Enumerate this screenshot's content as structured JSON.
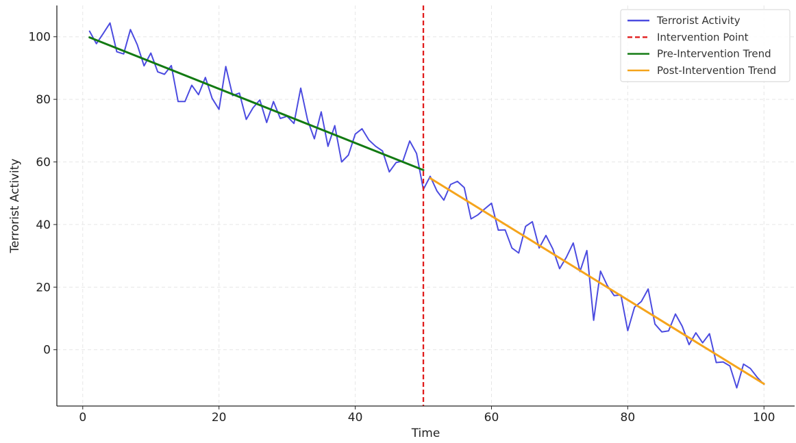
{
  "chart_data": {
    "type": "line",
    "title": "",
    "xlabel": "Time",
    "ylabel": "Terrorist Activity",
    "xlim": [
      -3.8,
      104.5
    ],
    "ylim": [
      -18,
      110
    ],
    "xticks": [
      0,
      20,
      40,
      60,
      80,
      100
    ],
    "yticks": [
      0,
      20,
      40,
      60,
      80,
      100
    ],
    "grid": true,
    "legend_position": "top-right",
    "intervention_x": 50,
    "series": [
      {
        "name": "Terrorist Activity",
        "kind": "line",
        "color": "#4b4be0",
        "x": [
          1,
          2,
          3,
          4,
          5,
          6,
          7,
          8,
          9,
          10,
          11,
          12,
          13,
          14,
          15,
          16,
          17,
          18,
          19,
          20,
          21,
          22,
          23,
          24,
          25,
          26,
          27,
          28,
          29,
          30,
          31,
          32,
          33,
          34,
          35,
          36,
          37,
          38,
          39,
          40,
          41,
          42,
          43,
          44,
          45,
          46,
          47,
          48,
          49,
          50,
          51,
          52,
          53,
          54,
          55,
          56,
          57,
          58,
          59,
          60,
          61,
          62,
          63,
          64,
          65,
          66,
          67,
          68,
          69,
          70,
          71,
          72,
          73,
          74,
          75,
          76,
          77,
          78,
          79,
          80,
          81,
          82,
          83,
          84,
          85,
          86,
          87,
          88,
          89,
          90,
          91,
          92,
          93,
          94,
          95,
          96,
          97,
          98,
          99,
          100
        ],
        "y": [
          101.8,
          97.8,
          101,
          104.4,
          95.2,
          94.5,
          102.3,
          97.5,
          90.7,
          94.8,
          88.8,
          88,
          90.8,
          79.3,
          79.3,
          84.5,
          81.5,
          87,
          80.3,
          76.8,
          90.5,
          81.2,
          82,
          73.6,
          77.3,
          79.8,
          72.6,
          79.3,
          73.9,
          74.6,
          72.3,
          83.6,
          73.4,
          67.4,
          76,
          65,
          71.6,
          60,
          62.2,
          68.9,
          70.6,
          67,
          65,
          63.5,
          56.8,
          59.8,
          60.3,
          66.7,
          62.7,
          51.2,
          55.4,
          50.7,
          47.8,
          52.8,
          53.8,
          51.8,
          41.8,
          43.1,
          45,
          46.8,
          38.2,
          38.3,
          32.5,
          30.9,
          39.4,
          40.9,
          32.5,
          36.5,
          32.2,
          25.9,
          29.6,
          34.1,
          25,
          31.7,
          9.4,
          25.1,
          20.5,
          17.3,
          17.5,
          6.1,
          13.6,
          15.4,
          19.4,
          8.2,
          5.7,
          6,
          11.4,
          7.5,
          1.6,
          5.4,
          2.2,
          5.1,
          -4.1,
          -3.9,
          -5.2,
          -12.2,
          -4.6,
          -6,
          -8.8,
          -11.1
        ]
      },
      {
        "name": "Intervention Point",
        "kind": "vline",
        "color": "#e01c1c"
      },
      {
        "name": "Pre-Intervention Trend",
        "kind": "line",
        "color": "#127a12",
        "x": [
          1,
          50
        ],
        "y": [
          99.8,
          57.4
        ]
      },
      {
        "name": "Post-Intervention Trend",
        "kind": "line",
        "color": "#f5a41c",
        "x": [
          51,
          100
        ],
        "y": [
          54.8,
          -10.9
        ]
      }
    ]
  }
}
